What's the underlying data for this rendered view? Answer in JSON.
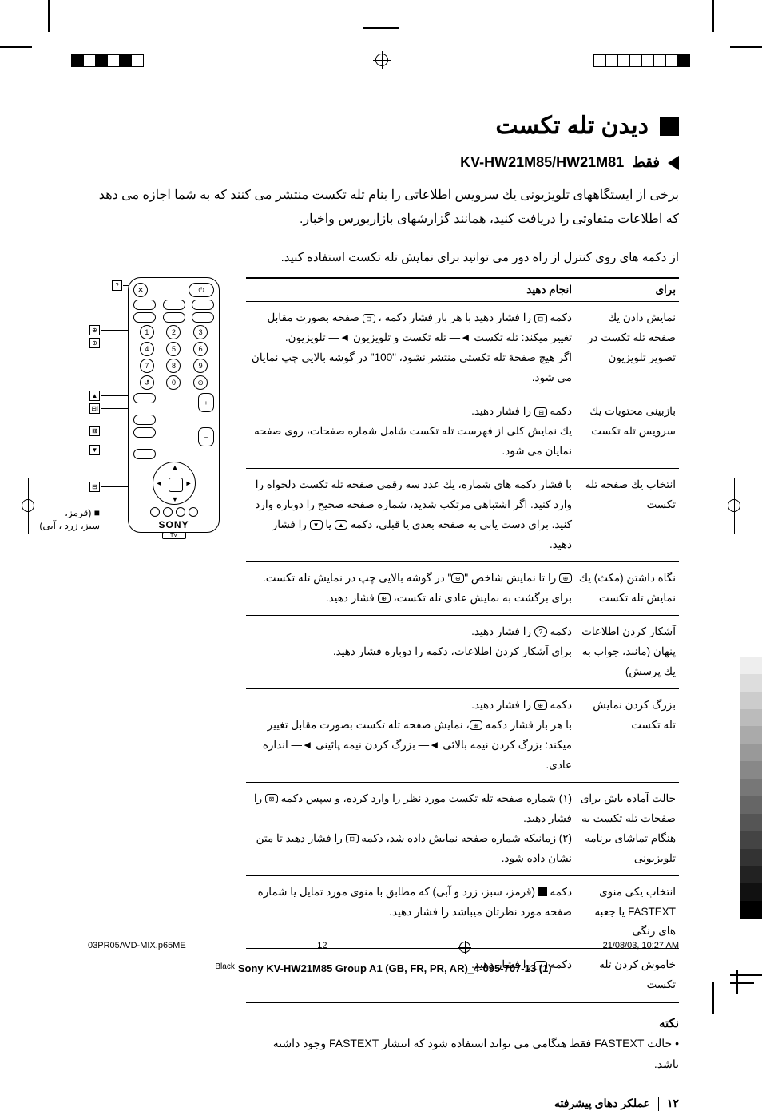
{
  "title": "دیدن تله تکست",
  "subtitle_arrow_label": "فقط",
  "model": "KV-HW21M85/HW21M81",
  "intro1": "برخی از ایستگاههای تلویزیونی یك سرویس اطلاعاتی را بنام تله تکست منتشر می کنند که به شما اجازه می دهد که اطلاعات متفاوتی را دریافت کنید، همانند گزارشهای بازاربورس واخبار.",
  "intro2": "از دکمه های روی کنترل از راه دور می توانید برای نمایش تله تکست استفاده کنید.",
  "table_h1": "برای",
  "table_h2": "انجام دهید",
  "rows": [
    {
      "c1": "نمایش دادن یك صفحه تله تکست در تصویر تلویزیون",
      "c2": "دکمه <span class='icon'>⊟</span> را فشار دهید با هر بار فشار دکمه ، <span class='icon'>⊟</span> صفحه بصورت مقابل تغییر میکند: تله تکست ◄— تله تکست و تلویزیون ◄— تلویزیون.<br>اگر هیچ صفحهٔ تله تکستی منتشر نشود، \"100\" در گوشه بالایی چپ نمایان می شود."
    },
    {
      "c1": "بازبینی محتویات یك سرویس تله تکست",
      "c2": "دکمه <span class='icon'>⊟i</span> را فشار دهید.<br>یك نمایش کلی از فهرست تله تکست شامل شماره صفحات، روی صفحه نمایان می شود."
    },
    {
      "c1": "انتخاب یك صفحه تله تکست",
      "c2": "با فشار دکمه های شماره، یك عدد سه رقمی صفحه تله تکست دلخواه را وارد کنید. اگر اشتباهی مرتکب شدید، شماره صفحه صحیح را دوباره وارد کنید. برای دست یابی به صفحه بعدی یا قبلی، دکمه <span class='icon'>▲</span> یا <span class='icon'>▼</span> را فشار دهید."
    },
    {
      "c1": "نگاه داشتن (مکث) یك نمایش تله تکست",
      "c2": "<span class='icon'>⊕</span> را تا نمایش شاخص \"<span class='icon'>⊕</span>\" در گوشه بالایی چپ در نمایش تله تکست. برای برگشت به نمایش عادی تله تکست، <span class='icon'>⊕</span> فشار دهید."
    },
    {
      "c1": "آشکار کردن اطلاعات پنهان (مانند، جواب به یك پرسش)",
      "c2": "دکمه <span class='icon round'>?</span> را فشار دهید.<br>برای آشکار کردن اطلاعات، دکمه را دوباره فشار دهید."
    },
    {
      "c1": "بزرگ کردن نمایش تله تکست",
      "c2": "دکمه <span class='icon'>⊕</span> را فشار دهید.<br>با هر بار فشار دکمه <span class='icon'>⊕</span>، نمایش صفحه تله تکست بصورت مقابل تغییر میکند: بزرگ کردن نیمه بالائی ◄— بزرگ کردن نیمه پائینی ◄— اندازه عادی."
    },
    {
      "c1": "حالت آماده باش برای صفحات تله تکست به هنگام تماشای برنامه تلویزیونی",
      "c2": "(۱) شماره صفحه تله تکست مورد نظر را وارد کرده، و سپس دکمه <span class='icon'>⊠</span> را فشار دهید.<br>(۲) زمانیکه شماره صفحه نمایش داده شد، دکمه <span class='icon'>⊟</span> را فشار دهید تا متن نشان داده شود."
    },
    {
      "c1": "انتخاب یکی منوی FASTEXT یا جعبه های رنگی",
      "c2": "دکمه <span class='blk-sq'></span> (قرمز، سبز، زرد و آبی) که مطابق با منوی مورد تمایل یا شماره صفحه مورد نظرتان میباشد را فشار دهید."
    },
    {
      "c1": "خاموش کردن تله تکست",
      "c2": "دکمه <span class='icon'>○</span> را فشار دهید."
    }
  ],
  "note_title": "نکته",
  "note_body": "•   حالت FASTEXT فقط هنگامی می تواند استفاده شود که انتشار FASTEXT وجود داشته باشد.",
  "page_num": "۱۲",
  "section_label": "عملکر دهای پیشرفته",
  "remote_caption1": "■ (قرمز،",
  "remote_caption2": "سبز، زرد ، آبی)",
  "remote_brand": "SONY",
  "footer_file": "03PR05AVD-MIX.p65ME",
  "footer_page": "12",
  "footer_date": "21/08/03, 10:27 AM",
  "footer_color": "Black",
  "footer_doc": "Sony KV-HW21M85 Group A1 (GB, FR, PR, AR)_4-095-707-13 (1)",
  "grad_colors": [
    "#ffffff",
    "#eeeeee",
    "#dddddd",
    "#cccccc",
    "#bbbbbb",
    "#aaaaaa",
    "#999999",
    "#888888",
    "#777777",
    "#666666",
    "#555555",
    "#444444",
    "#333333",
    "#222222",
    "#111111",
    "#000000"
  ]
}
